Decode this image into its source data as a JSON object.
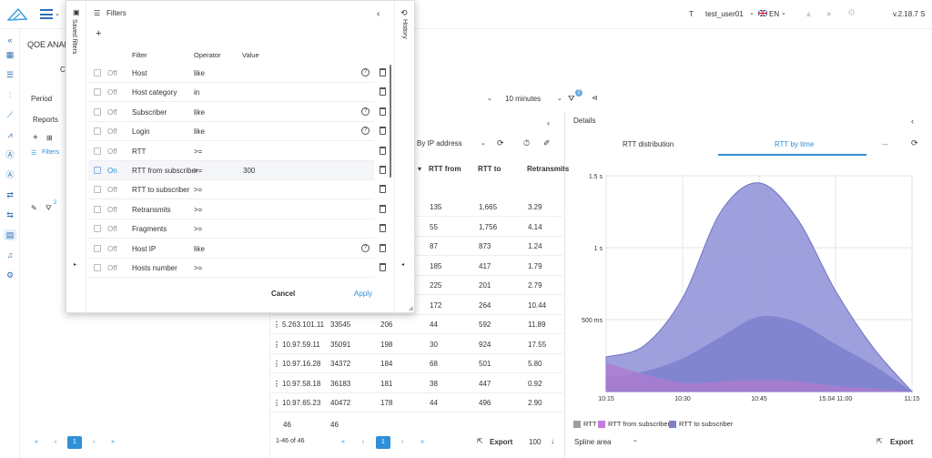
{
  "header": {
    "user_initial": "T",
    "username": "test_user01",
    "language": "EN",
    "version": "v.2.18.7 S"
  },
  "page": {
    "title_partial": "QOE ANALY",
    "period_label": "Period",
    "interval_value": "10 minutes",
    "filter_count": "2",
    "reports_label": "Reports",
    "filters_link": "Filters"
  },
  "filter_panel": {
    "title": "Filters",
    "saved_filters_label": "Saved filters",
    "history_label": "History",
    "add_symbol": "+",
    "columns": {
      "filter": "Filter",
      "operator": "Operator",
      "value": "Value"
    },
    "rows": [
      {
        "state": "Off",
        "filter": "Host",
        "operator": "like",
        "value": "",
        "help": true,
        "checked": false
      },
      {
        "state": "Off",
        "filter": "Host category",
        "operator": "in",
        "value": "",
        "help": false,
        "checked": false
      },
      {
        "state": "Off",
        "filter": "Subscriber",
        "operator": "like",
        "value": "",
        "help": true,
        "checked": false
      },
      {
        "state": "Off",
        "filter": "Login",
        "operator": "like",
        "value": "",
        "help": true,
        "checked": false
      },
      {
        "state": "Off",
        "filter": "RTT",
        "operator": ">=",
        "value": "",
        "help": false,
        "checked": false
      },
      {
        "state": "On",
        "filter": "RTT from subscriber",
        "operator": ">=",
        "value": "300",
        "help": false,
        "checked": true
      },
      {
        "state": "Off",
        "filter": "RTT to subscriber",
        "operator": ">=",
        "value": "",
        "help": false,
        "checked": false
      },
      {
        "state": "Off",
        "filter": "Retransmits",
        "operator": ">=",
        "value": "",
        "help": false,
        "checked": false
      },
      {
        "state": "Off",
        "filter": "Fragments",
        "operator": ">=",
        "value": "",
        "help": false,
        "checked": false
      },
      {
        "state": "Off",
        "filter": "Host IP",
        "operator": "like",
        "value": "",
        "help": true,
        "checked": false
      },
      {
        "state": "Off",
        "filter": "Hosts number",
        "operator": ">=",
        "value": "",
        "help": false,
        "checked": false
      }
    ],
    "cancel_label": "Cancel",
    "apply_label": "Apply"
  },
  "table": {
    "group_by": "By IP address",
    "columns": {
      "rtt_from": "RTT from",
      "rtt_to": "RTT to",
      "retransmits": "Retransmits"
    },
    "rows": [
      {
        "ip": "",
        "a": "",
        "b": "",
        "rtt_from": "135",
        "rtt_to": "1,665",
        "retr": "3.29"
      },
      {
        "ip": "",
        "a": "",
        "b": "",
        "rtt_from": "55",
        "rtt_to": "1,756",
        "retr": "4.14"
      },
      {
        "ip": "",
        "a": "",
        "b": "",
        "rtt_from": "87",
        "rtt_to": "873",
        "retr": "1.24"
      },
      {
        "ip": "",
        "a": "",
        "b": "",
        "rtt_from": "185",
        "rtt_to": "417",
        "retr": "1.79"
      },
      {
        "ip": "",
        "a": "",
        "b": "",
        "rtt_from": "225",
        "rtt_to": "201",
        "retr": "2.79"
      },
      {
        "ip": "",
        "a": "",
        "b": "",
        "rtt_from": "172",
        "rtt_to": "264",
        "retr": "10.44"
      },
      {
        "ip": "5.263.101.11",
        "a": "33545",
        "b": "206",
        "rtt_from": "44",
        "rtt_to": "592",
        "retr": "11.89"
      },
      {
        "ip": "10.97.59.11",
        "a": "35091",
        "b": "198",
        "rtt_from": "30",
        "rtt_to": "924",
        "retr": "17.55"
      },
      {
        "ip": "10.97.16.28",
        "a": "34372",
        "b": "184",
        "rtt_from": "68",
        "rtt_to": "501",
        "retr": "5.80"
      },
      {
        "ip": "10.97.58.18",
        "a": "36183",
        "b": "181",
        "rtt_from": "38",
        "rtt_to": "447",
        "retr": "0.92"
      },
      {
        "ip": "10.97.65.23",
        "a": "40472",
        "b": "178",
        "rtt_from": "44",
        "rtt_to": "496",
        "retr": "2.90"
      }
    ],
    "total_a": "46",
    "total_b": "46",
    "range_label": "1-46 of 46",
    "export_label": "Export",
    "page_size": "100",
    "current_page": "1"
  },
  "details": {
    "title": "Details",
    "tab_distribution": "RTT distribution",
    "tab_by_time": "RTT by time",
    "more": "...",
    "chart_type": "Spline area",
    "export_label": "Export"
  },
  "chart_data": {
    "type": "area",
    "x": [
      "10:15",
      "10:30",
      "10:45",
      "15.04 11:00",
      "11:15"
    ],
    "y_ticks": [
      "500 ms",
      "1 s",
      "1.5 s"
    ],
    "ylim": [
      0,
      1500
    ],
    "series": [
      {
        "name": "RTT",
        "color": "#9e9e9e",
        "points": [
          [
            0,
            220
          ],
          [
            1,
            380
          ],
          [
            2,
            820
          ],
          [
            3,
            650
          ],
          [
            4,
            0
          ]
        ]
      },
      {
        "name": "RTT to subscriber",
        "color": "#8c8fd6",
        "points": [
          [
            0,
            240
          ],
          [
            0.5,
            320
          ],
          [
            1,
            650
          ],
          [
            1.5,
            1250
          ],
          [
            2,
            1450
          ],
          [
            2.5,
            1200
          ],
          [
            3,
            700
          ],
          [
            3.5,
            300
          ],
          [
            4,
            0
          ]
        ]
      },
      {
        "name": "RTT from subscriber",
        "color": "#b07ad0",
        "points": [
          [
            0,
            200
          ],
          [
            0.5,
            120
          ],
          [
            1,
            60
          ],
          [
            1.5,
            70
          ],
          [
            2,
            80
          ],
          [
            2.5,
            70
          ],
          [
            3,
            40
          ],
          [
            3.5,
            20
          ],
          [
            4,
            0
          ]
        ]
      },
      {
        "name": "",
        "color": "#7d80cc",
        "points": [
          [
            0,
            100
          ],
          [
            0.5,
            140
          ],
          [
            1,
            230
          ],
          [
            1.5,
            380
          ],
          [
            2,
            520
          ],
          [
            2.5,
            480
          ],
          [
            3,
            330
          ],
          [
            3.5,
            180
          ],
          [
            4,
            0
          ]
        ]
      }
    ]
  },
  "colors": {
    "accent": "#2f8fd8",
    "area_main": "#8c8fd6",
    "area_low": "#b07ad0"
  }
}
